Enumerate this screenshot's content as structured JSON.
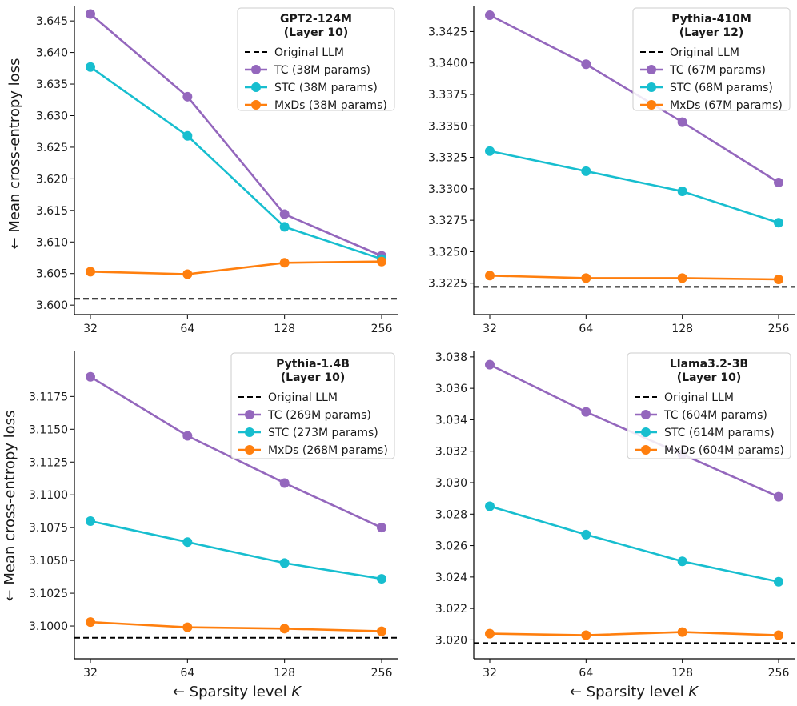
{
  "figure": {
    "ylabel": "← Mean cross-entropy loss",
    "xlabel": "← Sparsity level ",
    "xlabel_var": "K"
  },
  "colors": {
    "tc": "#9467bd",
    "stc": "#17becf",
    "mxds": "#ff7f0e",
    "baseline": "#000000"
  },
  "chart_data": [
    {
      "type": "line",
      "legend_title": [
        "GPT2-124M",
        "(Layer 10)"
      ],
      "x": [
        32,
        64,
        128,
        256
      ],
      "xtick_labels": [
        "32",
        "64",
        "128",
        "256"
      ],
      "ylim": [
        3.5985,
        3.6473
      ],
      "yticks": [
        3.6,
        3.605,
        3.61,
        3.615,
        3.62,
        3.625,
        3.63,
        3.635,
        3.64,
        3.645
      ],
      "ytick_decimals": 3,
      "baseline": {
        "name": "Original LLM",
        "value": 3.601
      },
      "series": [
        {
          "key": "tc",
          "name": "TC (38M params)",
          "values": [
            3.6461,
            3.633,
            3.6144,
            3.6078
          ]
        },
        {
          "key": "stc",
          "name": "STC (38M params)",
          "values": [
            3.6377,
            3.6268,
            3.6124,
            3.6073
          ]
        },
        {
          "key": "mxds",
          "name": "MxDs (38M params)",
          "values": [
            3.6053,
            3.6049,
            3.6067,
            3.6069
          ]
        }
      ]
    },
    {
      "type": "line",
      "legend_title": [
        "Pythia-410M",
        "(Layer 12)"
      ],
      "x": [
        32,
        64,
        128,
        256
      ],
      "xtick_labels": [
        "32",
        "64",
        "128",
        "256"
      ],
      "ylim": [
        3.32,
        3.3445
      ],
      "yticks": [
        3.3225,
        3.325,
        3.3275,
        3.33,
        3.3325,
        3.335,
        3.3375,
        3.34,
        3.3425
      ],
      "ytick_decimals": 4,
      "baseline": {
        "name": "Original LLM",
        "value": 3.3222
      },
      "series": [
        {
          "key": "tc",
          "name": "TC (67M params)",
          "values": [
            3.3438,
            3.3399,
            3.3353,
            3.3305
          ]
        },
        {
          "key": "stc",
          "name": "STC (68M params)",
          "values": [
            3.333,
            3.3314,
            3.3298,
            3.3273
          ]
        },
        {
          "key": "mxds",
          "name": "MxDs (67M params)",
          "values": [
            3.3231,
            3.3229,
            3.3229,
            3.3228
          ]
        }
      ]
    },
    {
      "type": "line",
      "legend_title": [
        "Pythia-1.4B",
        "(Layer 10)"
      ],
      "x": [
        32,
        64,
        128,
        256
      ],
      "xtick_labels": [
        "32",
        "64",
        "128",
        "256"
      ],
      "ylim": [
        3.0975,
        3.121
      ],
      "yticks": [
        3.1,
        3.1025,
        3.105,
        3.1075,
        3.11,
        3.1125,
        3.115,
        3.1175
      ],
      "ytick_decimals": 4,
      "baseline": {
        "name": "Original LLM",
        "value": 3.0991
      },
      "series": [
        {
          "key": "tc",
          "name": "TC (269M params)",
          "values": [
            3.119,
            3.1145,
            3.1109,
            3.1075
          ]
        },
        {
          "key": "stc",
          "name": "STC (273M params)",
          "values": [
            3.108,
            3.1064,
            3.1048,
            3.1036
          ]
        },
        {
          "key": "mxds",
          "name": "MxDs (268M params)",
          "values": [
            3.1003,
            3.0999,
            3.0998,
            3.0996
          ]
        }
      ]
    },
    {
      "type": "line",
      "legend_title": [
        "Llama3.2-3B",
        "(Layer 10)"
      ],
      "x": [
        32,
        64,
        128,
        256
      ],
      "xtick_labels": [
        "32",
        "64",
        "128",
        "256"
      ],
      "ylim": [
        3.0188,
        3.0384
      ],
      "yticks": [
        3.02,
        3.022,
        3.024,
        3.026,
        3.028,
        3.03,
        3.032,
        3.034,
        3.036,
        3.038
      ],
      "ytick_decimals": 3,
      "baseline": {
        "name": "Original LLM",
        "value": 3.0198
      },
      "series": [
        {
          "key": "tc",
          "name": "TC (604M params)",
          "values": [
            3.0375,
            3.0345,
            3.0318,
            3.0291
          ]
        },
        {
          "key": "stc",
          "name": "STC (614M params)",
          "values": [
            3.0285,
            3.0267,
            3.025,
            3.0237
          ]
        },
        {
          "key": "mxds",
          "name": "MxDs (604M params)",
          "values": [
            3.0204,
            3.0203,
            3.0205,
            3.0203
          ]
        }
      ]
    }
  ]
}
